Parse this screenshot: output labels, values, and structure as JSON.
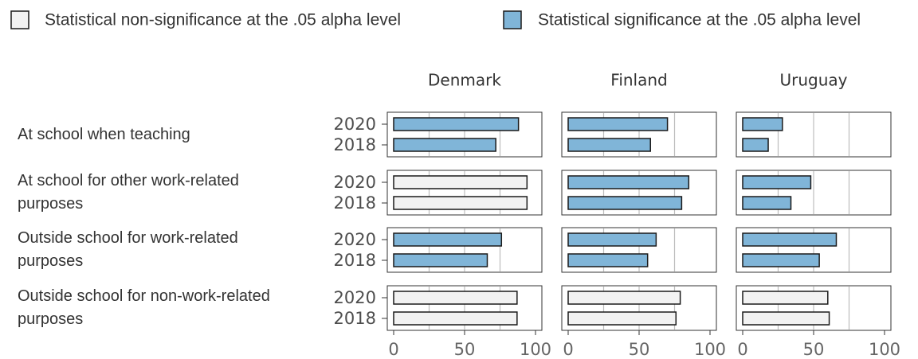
{
  "chart_data": {
    "type": "bar",
    "orientation": "horizontal",
    "legend": [
      {
        "name": "Statistical non-significance at the .05 alpha level",
        "color": "#f2f2f2"
      },
      {
        "name": "Statistical significance at the .05 alpha level",
        "color": "#80b5d8"
      }
    ],
    "groups": [
      "At school when teaching",
      "At school for other work-related purposes",
      "Outside school for work-related purposes",
      "Outside school for non-work-related purposes"
    ],
    "categories": [
      "2020",
      "2018"
    ],
    "xlim": [
      0,
      100
    ],
    "xticks": [
      0,
      50,
      100
    ],
    "gridlines": [
      25,
      50,
      75
    ],
    "panels": [
      {
        "title": "Denmark",
        "values": [
          [
            88,
            72
          ],
          [
            94,
            94
          ],
          [
            76,
            66
          ],
          [
            87,
            87
          ]
        ],
        "significant": [
          true,
          false,
          true,
          false
        ]
      },
      {
        "title": "Finland",
        "values": [
          [
            70,
            58
          ],
          [
            85,
            80
          ],
          [
            62,
            56
          ],
          [
            79,
            76
          ]
        ],
        "significant": [
          true,
          true,
          true,
          false
        ]
      },
      {
        "title": "Uruguay",
        "values": [
          [
            28,
            18
          ],
          [
            48,
            34
          ],
          [
            66,
            54
          ],
          [
            60,
            61
          ]
        ],
        "significant": [
          true,
          true,
          true,
          false
        ]
      }
    ]
  }
}
